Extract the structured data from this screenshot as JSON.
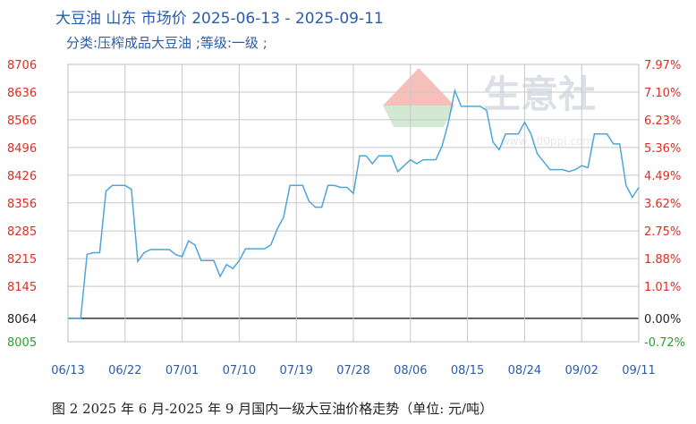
{
  "chart_data": {
    "type": "line",
    "title": "大豆油 山东 市场价 2025-06-13 - 2025-09-11",
    "subtitle": "分类:压榨成品大豆油 ;等级:一级 ;",
    "caption": "图 2   2025 年 6 月-2025 年 9 月国内一级大豆油价格走势（单位: 元/吨）",
    "watermark": "生意社",
    "watermark_url": "www.100ppi.com",
    "y_ticks_left": [
      "8706",
      "8636",
      "8566",
      "8496",
      "8426",
      "8356",
      "8285",
      "8215",
      "8145",
      "8064",
      "8005"
    ],
    "y_ticks_right": [
      "7.97%",
      "7.10%",
      "6.23%",
      "5.36%",
      "4.49%",
      "3.62%",
      "2.75%",
      "1.88%",
      "1.01%",
      "0.00%",
      "-0.72%"
    ],
    "x_ticks": [
      "06/13",
      "06/22",
      "07/01",
      "07/10",
      "07/19",
      "07/28",
      "08/06",
      "08/15",
      "08/24",
      "09/02",
      "09/11"
    ],
    "ylim": [
      8005,
      8706
    ],
    "base_value": 8064,
    "colors": {
      "line": "#4da6d9",
      "grid": "#c8c8c8",
      "title": "#2a5caa",
      "tick": "#d93025"
    },
    "grid": true,
    "series": [
      {
        "x": [
          0,
          1,
          2,
          3,
          4,
          5,
          6,
          7,
          8,
          9,
          10,
          11,
          12,
          13,
          14,
          15,
          16,
          17,
          18,
          19,
          20,
          21,
          22,
          23,
          24,
          25,
          26,
          27,
          28,
          29,
          30,
          31,
          32,
          33,
          34,
          35,
          36,
          37,
          38,
          39,
          40,
          41,
          42,
          43,
          44,
          45,
          46,
          47,
          48,
          49,
          50,
          51,
          52,
          53,
          54,
          55,
          56,
          57,
          58,
          59,
          60,
          61,
          62,
          63,
          64,
          65,
          66,
          67,
          68,
          69,
          70,
          71,
          72,
          73,
          74,
          75,
          76,
          77,
          78,
          79,
          80,
          81,
          82,
          83,
          84,
          85,
          86,
          87,
          88,
          89,
          90
        ],
        "values": [
          8064,
          8064,
          8064,
          8226,
          8230,
          8230,
          8386,
          8400,
          8400,
          8400,
          8390,
          8208,
          8230,
          8238,
          8238,
          8238,
          8238,
          8225,
          8220,
          8260,
          8250,
          8210,
          8210,
          8210,
          8170,
          8200,
          8190,
          8210,
          8240,
          8240,
          8240,
          8240,
          8250,
          8290,
          8320,
          8400,
          8400,
          8400,
          8360,
          8345,
          8345,
          8400,
          8400,
          8395,
          8395,
          8380,
          8475,
          8475,
          8455,
          8475,
          8475,
          8475,
          8435,
          8450,
          8465,
          8455,
          8465,
          8465,
          8465,
          8500,
          8560,
          8640,
          8600,
          8600,
          8600,
          8600,
          8590,
          8510,
          8490,
          8530,
          8530,
          8530,
          8560,
          8530,
          8480,
          8460,
          8440,
          8440,
          8440,
          8435,
          8440,
          8450,
          8445,
          8530,
          8530,
          8530,
          8505,
          8505,
          8400,
          8370,
          8395
        ]
      }
    ]
  }
}
